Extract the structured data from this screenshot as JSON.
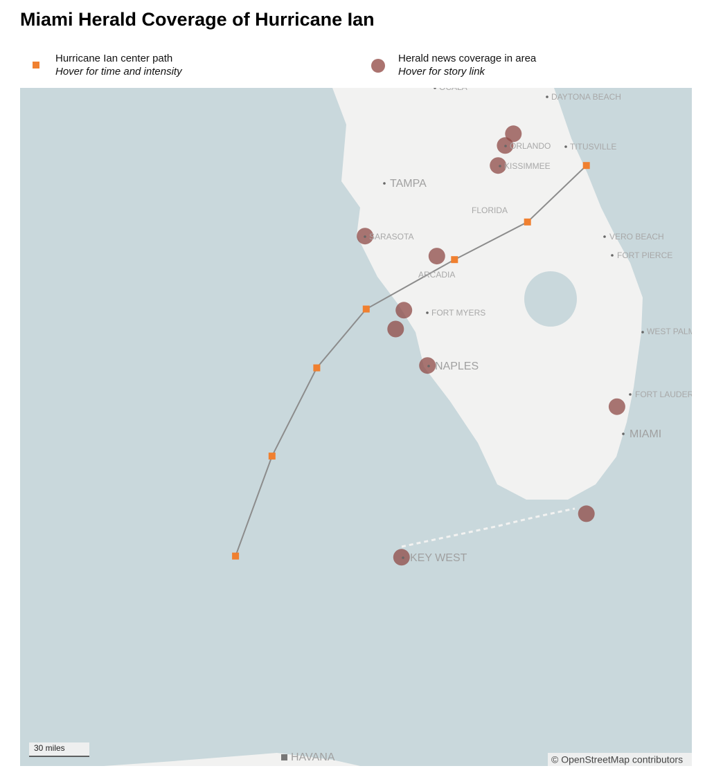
{
  "title": "Miami Herald Coverage of Hurricane Ian",
  "legend": [
    {
      "label": "Hurricane Ian center path",
      "hint": "Hover for time and intensity"
    },
    {
      "label": "Herald news coverage in area",
      "hint": "Hover for story link"
    }
  ],
  "hurricane_path": [
    {
      "lat": 28.64,
      "lon": -79.19
    },
    {
      "lat": 28.16,
      "lon": -79.69
    },
    {
      "lat": 27.84,
      "lon": -80.31
    },
    {
      "lat": 27.42,
      "lon": -81.06
    },
    {
      "lat": 26.92,
      "lon": -81.48
    },
    {
      "lat": 26.17,
      "lon": -81.86
    },
    {
      "lat": 25.32,
      "lon": -82.17
    }
  ],
  "coverage": [
    {
      "lat": 28.91,
      "lon": -79.81
    },
    {
      "lat": 28.81,
      "lon": -79.88
    },
    {
      "lat": 28.64,
      "lon": -79.94
    },
    {
      "lat": 28.04,
      "lon": -81.07
    },
    {
      "lat": 27.87,
      "lon": -80.46
    },
    {
      "lat": 27.41,
      "lon": -80.74
    },
    {
      "lat": 27.25,
      "lon": -80.81
    },
    {
      "lat": 26.94,
      "lon": -80.54
    },
    {
      "lat": 26.59,
      "lon": -78.93
    },
    {
      "lat": 25.68,
      "lon": -79.19
    },
    {
      "lat": 25.31,
      "lon": -80.76
    }
  ],
  "cities": [
    "OCALA",
    "DAYTONA BEACH",
    "ORLANDO",
    "TITUSVILLE",
    "KISSIMMEE",
    "TAMPA",
    "FLORIDA",
    "SARASOTA",
    "VERO BEACH",
    "FORT PIERCE",
    "ARCADIA",
    "FORT MYERS",
    "WEST PALM",
    "NAPLES",
    "FORT LAUDERDALE",
    "MIAMI",
    "KEY WEST",
    "HAVANA"
  ],
  "scale": "30 miles",
  "attribution": "© OpenStreetMap contributors"
}
